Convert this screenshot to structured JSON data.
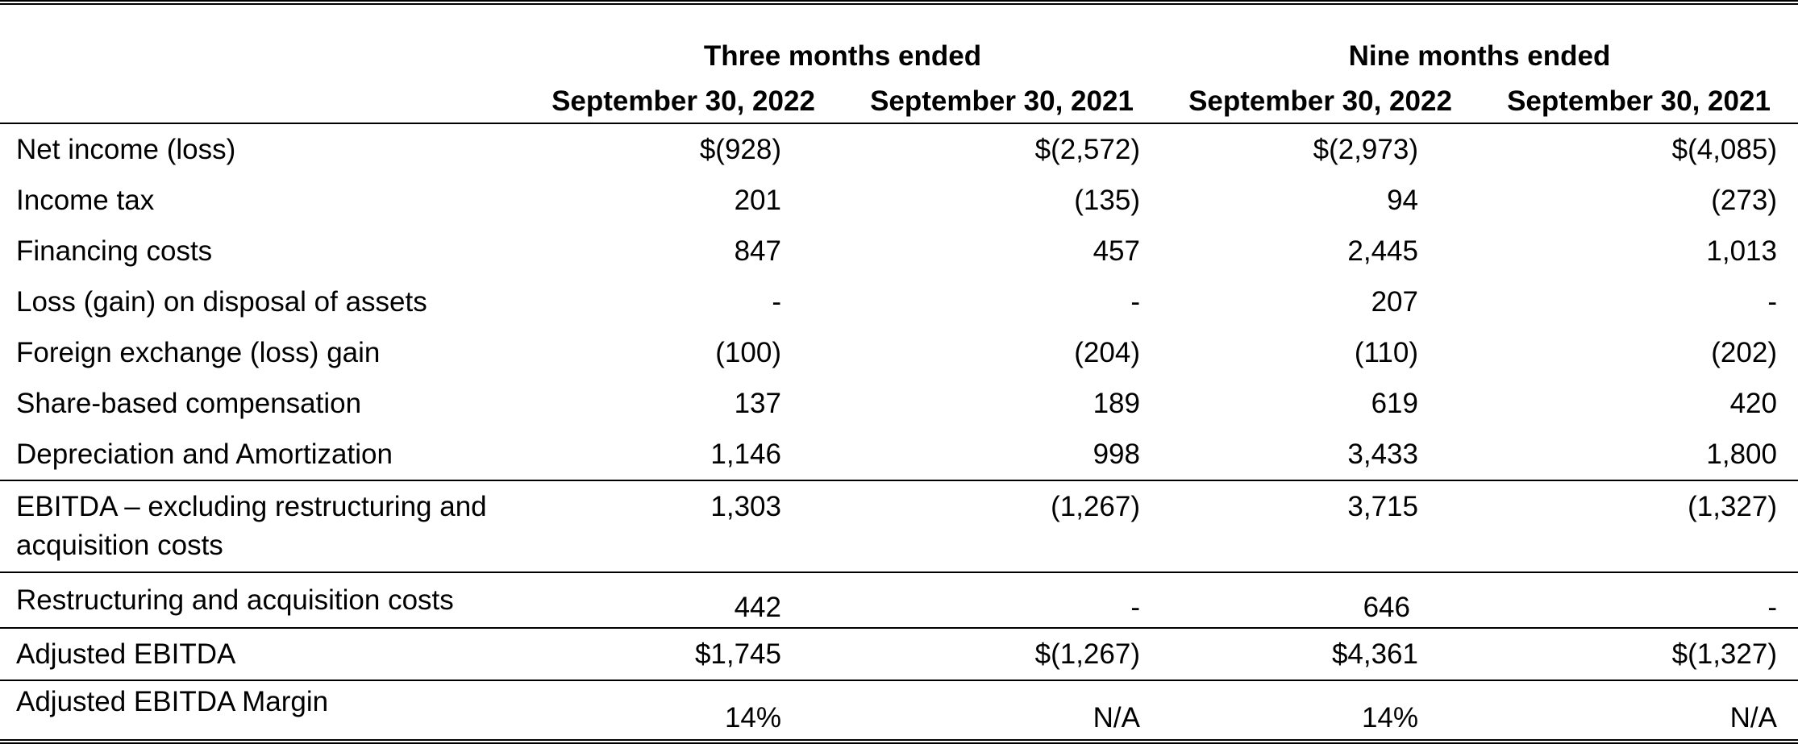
{
  "header": {
    "group_three": "Three months ended",
    "group_nine": "Nine months ended",
    "columns": [
      "September 30, 2022",
      "September 30, 2021",
      "September 30, 2022",
      "September 30, 2021"
    ]
  },
  "rows": [
    {
      "label": "Net income (loss)",
      "values": [
        "$(928)",
        "$(2,572)",
        "$(2,973)",
        "$(4,085)"
      ]
    },
    {
      "label": "Income tax",
      "values": [
        "201",
        "(135)",
        "94",
        "(273)"
      ]
    },
    {
      "label": "Financing costs",
      "values": [
        "847",
        "457",
        "2,445",
        "1,013"
      ]
    },
    {
      "label": "Loss (gain) on disposal of assets",
      "values": [
        "-",
        "-",
        "207",
        "-"
      ]
    },
    {
      "label": "Foreign exchange (loss) gain",
      "values": [
        "(100)",
        "(204)",
        "(110)",
        "(202)"
      ]
    },
    {
      "label": "Share-based compensation",
      "values": [
        "137",
        "189",
        "619",
        "420"
      ]
    },
    {
      "label": "Depreciation and Amortization",
      "values": [
        "1,146",
        "998",
        "3,433",
        "1,800"
      ]
    },
    {
      "label": "EBITDA – excluding restructuring and acquisition costs",
      "values": [
        "1,303",
        "(1,267)",
        "3,715",
        "(1,327)"
      ]
    },
    {
      "label": "Restructuring and acquisition costs",
      "values": [
        "442",
        "-",
        "646",
        "-"
      ]
    },
    {
      "label": "Adjusted EBITDA",
      "values": [
        "$1,745",
        "$(1,267)",
        "$4,361",
        "$(1,327)"
      ]
    },
    {
      "label": "Adjusted EBITDA Margin",
      "values": [
        "14%",
        "N/A",
        "14%",
        "N/A"
      ]
    }
  ]
}
